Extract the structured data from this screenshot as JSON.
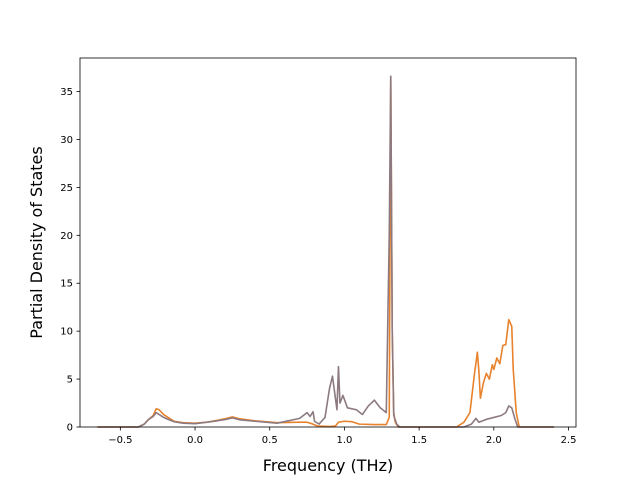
{
  "chart_data": {
    "type": "line",
    "title": "",
    "xlabel": "Frequency (THz)",
    "ylabel": "Partial Density of States",
    "xlim": [
      -0.77,
      2.55
    ],
    "ylim": [
      0,
      38.5
    ],
    "xticks": [
      -0.5,
      0.0,
      0.5,
      1.0,
      1.5,
      2.0,
      2.5
    ],
    "xtick_labels": [
      "−0.5",
      "0.0",
      "0.5",
      "1.0",
      "1.5",
      "2.0",
      "2.5"
    ],
    "yticks": [
      0,
      5,
      10,
      15,
      20,
      25,
      30,
      35
    ],
    "ytick_labels": [
      "0",
      "5",
      "10",
      "15",
      "20",
      "25",
      "30",
      "35"
    ],
    "grid": false,
    "series": [
      {
        "color": "#e8822c",
        "points": [
          [
            -0.65,
            0
          ],
          [
            -0.38,
            0
          ],
          [
            -0.34,
            0.3
          ],
          [
            -0.31,
            0.8
          ],
          [
            -0.28,
            1.2
          ],
          [
            -0.26,
            1.9
          ],
          [
            -0.24,
            1.8
          ],
          [
            -0.21,
            1.3
          ],
          [
            -0.18,
            1.0
          ],
          [
            -0.14,
            0.6
          ],
          [
            -0.08,
            0.45
          ],
          [
            0.0,
            0.4
          ],
          [
            0.08,
            0.5
          ],
          [
            0.15,
            0.7
          ],
          [
            0.21,
            0.9
          ],
          [
            0.25,
            1.05
          ],
          [
            0.3,
            0.85
          ],
          [
            0.4,
            0.65
          ],
          [
            0.55,
            0.45
          ],
          [
            0.7,
            0.5
          ],
          [
            0.75,
            0.5
          ],
          [
            0.78,
            0.35
          ],
          [
            0.82,
            0.1
          ],
          [
            0.9,
            0.05
          ],
          [
            0.94,
            0.1
          ],
          [
            0.96,
            0.5
          ],
          [
            1.0,
            0.6
          ],
          [
            1.05,
            0.55
          ],
          [
            1.1,
            0.3
          ],
          [
            1.2,
            0.25
          ],
          [
            1.28,
            0.25
          ],
          [
            1.3,
            1.0
          ],
          [
            1.31,
            36.5
          ],
          [
            1.32,
            10
          ],
          [
            1.33,
            1.5
          ],
          [
            1.34,
            0.5
          ],
          [
            1.36,
            0
          ],
          [
            1.75,
            0
          ],
          [
            1.8,
            0.5
          ],
          [
            1.84,
            1.5
          ],
          [
            1.87,
            5.5
          ],
          [
            1.89,
            7.8
          ],
          [
            1.9,
            5.8
          ],
          [
            1.91,
            3.0
          ],
          [
            1.93,
            4.6
          ],
          [
            1.95,
            5.6
          ],
          [
            1.97,
            5.0
          ],
          [
            1.99,
            6.5
          ],
          [
            2.0,
            6.0
          ],
          [
            2.02,
            7.2
          ],
          [
            2.04,
            6.6
          ],
          [
            2.06,
            8.5
          ],
          [
            2.08,
            8.6
          ],
          [
            2.1,
            11.2
          ],
          [
            2.12,
            10.5
          ],
          [
            2.13,
            6.0
          ],
          [
            2.15,
            1.5
          ],
          [
            2.17,
            0
          ],
          [
            2.4,
            0
          ]
        ]
      },
      {
        "color": "#8c7a80",
        "points": [
          [
            -0.65,
            0
          ],
          [
            -0.38,
            0
          ],
          [
            -0.34,
            0.3
          ],
          [
            -0.31,
            0.8
          ],
          [
            -0.28,
            1.1
          ],
          [
            -0.26,
            1.5
          ],
          [
            -0.24,
            1.3
          ],
          [
            -0.21,
            1.0
          ],
          [
            -0.18,
            0.8
          ],
          [
            -0.14,
            0.55
          ],
          [
            -0.08,
            0.4
          ],
          [
            0.0,
            0.35
          ],
          [
            0.08,
            0.5
          ],
          [
            0.15,
            0.65
          ],
          [
            0.21,
            0.8
          ],
          [
            0.25,
            0.95
          ],
          [
            0.3,
            0.75
          ],
          [
            0.4,
            0.6
          ],
          [
            0.55,
            0.4
          ],
          [
            0.7,
            0.9
          ],
          [
            0.75,
            1.5
          ],
          [
            0.77,
            1.1
          ],
          [
            0.79,
            1.6
          ],
          [
            0.8,
            0.6
          ],
          [
            0.83,
            0.3
          ],
          [
            0.87,
            1.0
          ],
          [
            0.9,
            4.0
          ],
          [
            0.92,
            5.3
          ],
          [
            0.95,
            1.8
          ],
          [
            0.96,
            6.3
          ],
          [
            0.97,
            2.5
          ],
          [
            0.99,
            3.3
          ],
          [
            1.02,
            2.0
          ],
          [
            1.08,
            1.8
          ],
          [
            1.12,
            1.3
          ],
          [
            1.16,
            2.2
          ],
          [
            1.2,
            2.8
          ],
          [
            1.24,
            2.0
          ],
          [
            1.28,
            1.5
          ],
          [
            1.3,
            20
          ],
          [
            1.31,
            36.6
          ],
          [
            1.32,
            10
          ],
          [
            1.33,
            1.2
          ],
          [
            1.35,
            0.3
          ],
          [
            1.37,
            0
          ],
          [
            1.8,
            0
          ],
          [
            1.85,
            0.3
          ],
          [
            1.88,
            0.9
          ],
          [
            1.9,
            0.5
          ],
          [
            1.95,
            0.8
          ],
          [
            2.0,
            1.0
          ],
          [
            2.05,
            1.2
          ],
          [
            2.08,
            1.5
          ],
          [
            2.1,
            2.2
          ],
          [
            2.12,
            2.0
          ],
          [
            2.14,
            0.9
          ],
          [
            2.16,
            0
          ],
          [
            2.4,
            0
          ]
        ]
      }
    ]
  }
}
